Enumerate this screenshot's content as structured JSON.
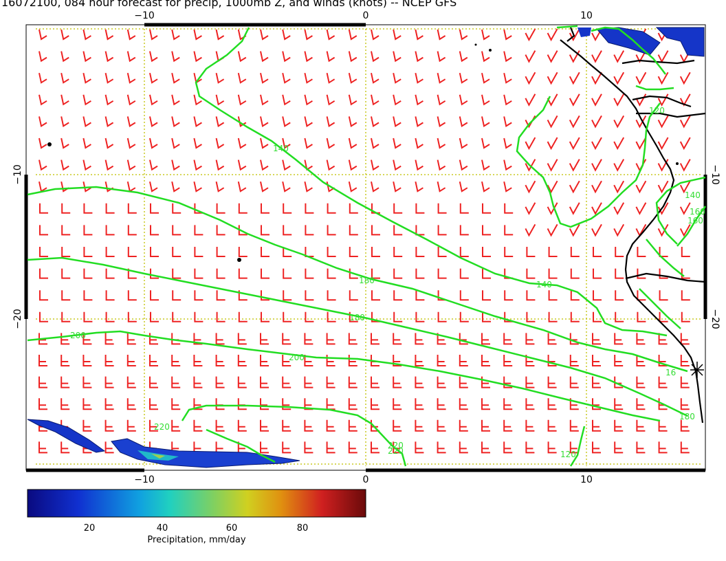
{
  "title": "16072100, 084 hour forecast for precip, 1000mb Z, and winds (knots) -- NCEP GFS",
  "axes": {
    "x_top_ticks": [
      "−10",
      "0",
      "10"
    ],
    "x_bottom_ticks": [
      "−10",
      "0",
      "10"
    ],
    "y_left_ticks": [
      "−10",
      "−20"
    ],
    "y_right_ticks": [
      "−10",
      "−20"
    ]
  },
  "contours": {
    "color": "#22dd22",
    "labels": [
      "140",
      "140",
      "160",
      "180",
      "180",
      "200",
      "200",
      "220",
      "220",
      "120",
      "140",
      "160",
      "16",
      "180",
      "220",
      "120"
    ]
  },
  "wind_barb_color": "#ee2222",
  "grid_color": "#cccc22",
  "colorbar": {
    "label": "Precipitation, mm/day",
    "ticks": [
      "20",
      "40",
      "60",
      "80"
    ],
    "colors": [
      "#0a0a80",
      "#1030d0",
      "#10a0e0",
      "#20d0c0",
      "#80d060",
      "#d0d020",
      "#e09010",
      "#d02020",
      "#6a0a0a"
    ]
  }
}
